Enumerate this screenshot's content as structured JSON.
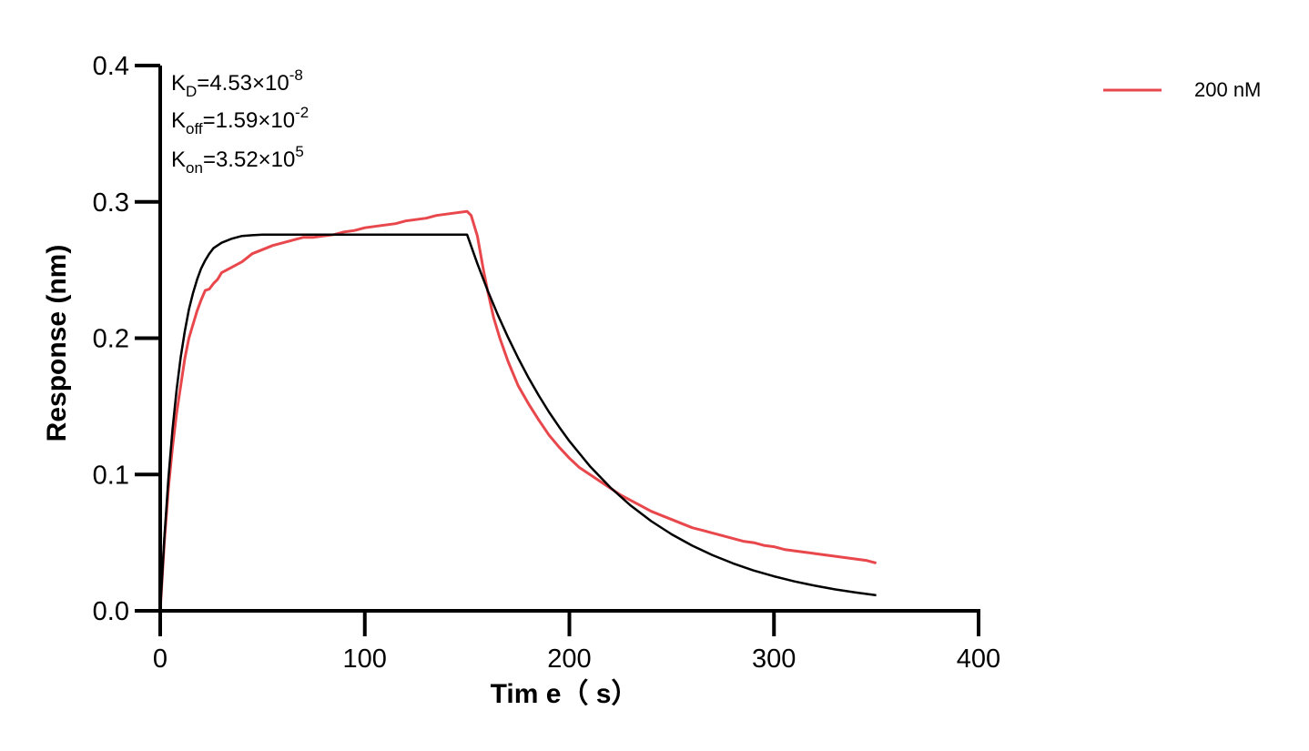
{
  "chart_data": {
    "type": "line",
    "xlabel": "Tim e（ s）",
    "ylabel": "Response (nm)",
    "xlim": [
      0,
      400
    ],
    "ylim": [
      0,
      0.4
    ],
    "x_ticks": [
      "0",
      "100",
      "200",
      "300",
      "400"
    ],
    "y_ticks": [
      "0.0",
      "0.1",
      "0.2",
      "0.3",
      "0.4"
    ],
    "grid": false,
    "legend_position": "top-right",
    "colors": {
      "measured": "#e8474c",
      "fit": "#000000",
      "axis": "#000000"
    },
    "annotations": {
      "kd": {
        "base": "K",
        "sub": "D",
        "value": "=4.53×10",
        "exp": "-8"
      },
      "koff": {
        "base": "K",
        "sub": "off",
        "value": "=1.59×10",
        "exp": "-2"
      },
      "kon": {
        "base": "K",
        "sub": "on",
        "value": "=3.52×10",
        "exp": "5"
      }
    },
    "series": [
      {
        "name": "200 nM",
        "color": "#e8474c",
        "x": [
          0,
          2,
          4,
          6,
          8,
          10,
          12,
          14,
          16,
          18,
          20,
          22,
          24,
          26,
          28,
          30,
          35,
          40,
          45,
          50,
          55,
          60,
          65,
          70,
          75,
          80,
          85,
          90,
          95,
          100,
          105,
          110,
          115,
          120,
          125,
          130,
          135,
          140,
          145,
          150,
          152,
          155,
          158,
          160,
          163,
          166,
          170,
          175,
          180,
          185,
          190,
          195,
          200,
          205,
          210,
          215,
          220,
          225,
          230,
          235,
          240,
          245,
          250,
          255,
          260,
          265,
          270,
          275,
          280,
          285,
          290,
          295,
          300,
          305,
          310,
          315,
          320,
          325,
          330,
          335,
          340,
          345,
          350
        ],
        "y": [
          0.0,
          0.05,
          0.09,
          0.12,
          0.145,
          0.165,
          0.185,
          0.2,
          0.21,
          0.22,
          0.228,
          0.235,
          0.236,
          0.24,
          0.243,
          0.248,
          0.252,
          0.256,
          0.262,
          0.265,
          0.268,
          0.27,
          0.272,
          0.274,
          0.274,
          0.275,
          0.276,
          0.278,
          0.279,
          0.281,
          0.282,
          0.283,
          0.284,
          0.286,
          0.287,
          0.288,
          0.29,
          0.291,
          0.292,
          0.293,
          0.29,
          0.275,
          0.25,
          0.235,
          0.215,
          0.2,
          0.183,
          0.165,
          0.152,
          0.14,
          0.129,
          0.12,
          0.112,
          0.105,
          0.1,
          0.095,
          0.09,
          0.085,
          0.081,
          0.077,
          0.073,
          0.07,
          0.067,
          0.064,
          0.061,
          0.059,
          0.057,
          0.055,
          0.053,
          0.051,
          0.05,
          0.048,
          0.047,
          0.045,
          0.044,
          0.043,
          0.042,
          0.041,
          0.04,
          0.039,
          0.038,
          0.037,
          0.035
        ]
      },
      {
        "name": "",
        "color": "#000000",
        "x": [
          0,
          2,
          4,
          6,
          8,
          10,
          12,
          14,
          16,
          18,
          20,
          22,
          24,
          26,
          28,
          30,
          35,
          40,
          45,
          50,
          60,
          70,
          80,
          90,
          100,
          110,
          120,
          130,
          140,
          150,
          155,
          160,
          165,
          170,
          175,
          180,
          185,
          190,
          195,
          200,
          210,
          220,
          230,
          240,
          250,
          260,
          270,
          280,
          290,
          300,
          310,
          320,
          330,
          340,
          350
        ],
        "y": [
          0.0,
          0.053,
          0.097,
          0.133,
          0.162,
          0.186,
          0.205,
          0.221,
          0.233,
          0.243,
          0.251,
          0.257,
          0.262,
          0.266,
          0.268,
          0.27,
          0.273,
          0.275,
          0.2755,
          0.276,
          0.276,
          0.276,
          0.276,
          0.276,
          0.276,
          0.276,
          0.276,
          0.276,
          0.276,
          0.276,
          0.2547,
          0.2352,
          0.2172,
          0.2006,
          0.1853,
          0.1711,
          0.158,
          0.1459,
          0.1348,
          0.1245,
          0.1061,
          0.0905,
          0.0772,
          0.0658,
          0.0561,
          0.0478,
          0.0408,
          0.0348,
          0.0296,
          0.0253,
          0.0216,
          0.0184,
          0.0157,
          0.0134,
          0.0114
        ]
      }
    ]
  }
}
